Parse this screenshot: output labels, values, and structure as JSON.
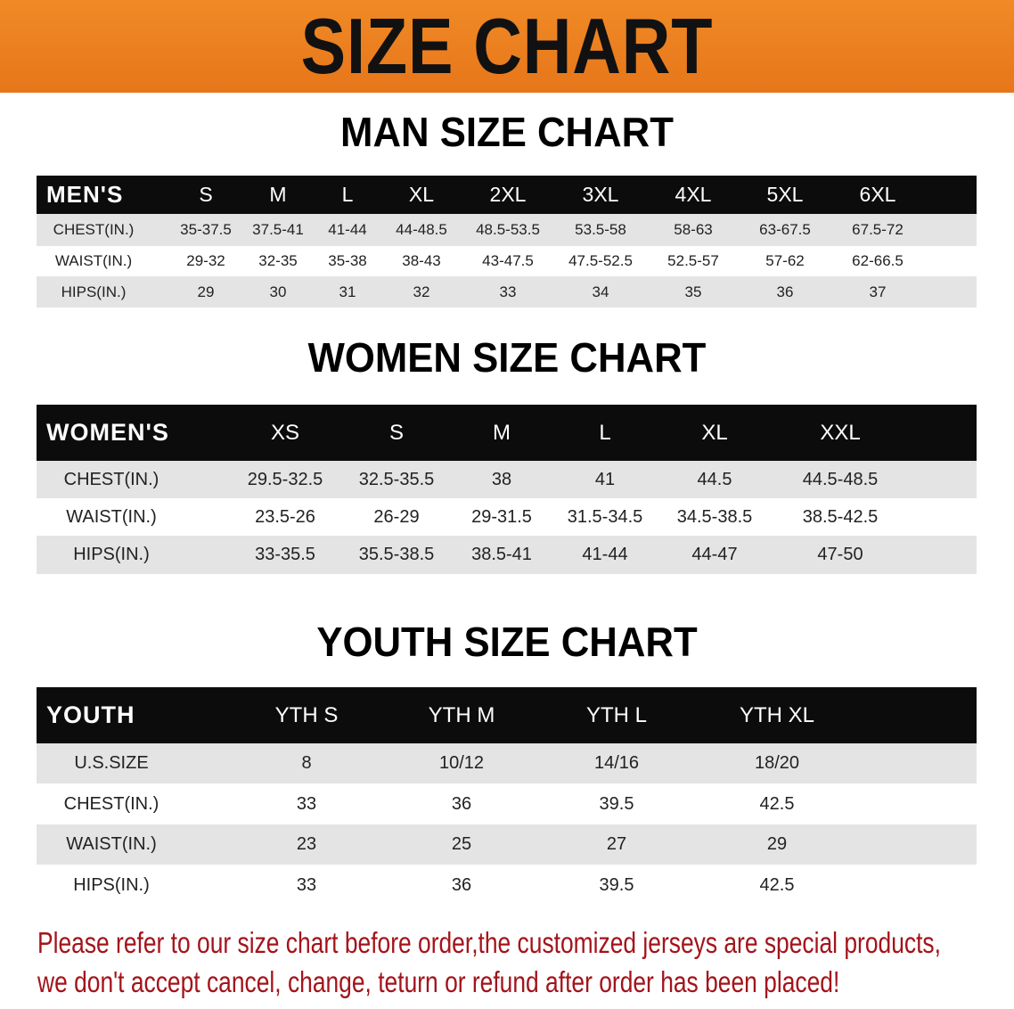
{
  "banner": {
    "title": "SIZE CHART",
    "color": "#e97c1f"
  },
  "men": {
    "title": "MAN SIZE CHART",
    "header": [
      "MEN'S",
      "S",
      "M",
      "L",
      "XL",
      "2XL",
      "3XL",
      "4XL",
      "5XL",
      "6XL"
    ],
    "rows": [
      [
        "CHEST(IN.)",
        "35-37.5",
        "37.5-41",
        "41-44",
        "44-48.5",
        "48.5-53.5",
        "53.5-58",
        "58-63",
        "63-67.5",
        "67.5-72"
      ],
      [
        "WAIST(IN.)",
        "29-32",
        "32-35",
        "35-38",
        "38-43",
        "43-47.5",
        "47.5-52.5",
        "52.5-57",
        "57-62",
        "62-66.5"
      ],
      [
        "HIPS(IN.)",
        "29",
        "30",
        "31",
        "32",
        "33",
        "34",
        "35",
        "36",
        "37"
      ]
    ]
  },
  "women": {
    "title": "WOMEN SIZE CHART",
    "header": [
      "WOMEN'S",
      "XS",
      "S",
      "M",
      "L",
      "XL",
      "XXL"
    ],
    "rows": [
      [
        "CHEST(IN.)",
        "29.5-32.5",
        "32.5-35.5",
        "38",
        "41",
        "44.5",
        "44.5-48.5"
      ],
      [
        "WAIST(IN.)",
        "23.5-26",
        "26-29",
        "29-31.5",
        "31.5-34.5",
        "34.5-38.5",
        "38.5-42.5"
      ],
      [
        "HIPS(IN.)",
        "33-35.5",
        "35.5-38.5",
        "38.5-41",
        "41-44",
        "44-47",
        "47-50"
      ]
    ]
  },
  "youth": {
    "title": "YOUTH SIZE CHART",
    "header": [
      "YOUTH",
      "YTH S",
      "YTH M",
      "YTH L",
      "YTH XL"
    ],
    "rows": [
      [
        "U.S.SIZE",
        "8",
        "10/12",
        "14/16",
        "18/20"
      ],
      [
        "CHEST(IN.)",
        "33",
        "36",
        "39.5",
        "42.5"
      ],
      [
        "WAIST(IN.)",
        "23",
        "25",
        "27",
        "29"
      ],
      [
        "HIPS(IN.)",
        "33",
        "36",
        "39.5",
        "42.5"
      ]
    ]
  },
  "notice": {
    "line1": "Please refer to our size chart before order,the customized jerseys are special products,",
    "line2": "we don't accept cancel, change, teturn or refund after order has been placed!",
    "color": "#a3141b"
  }
}
